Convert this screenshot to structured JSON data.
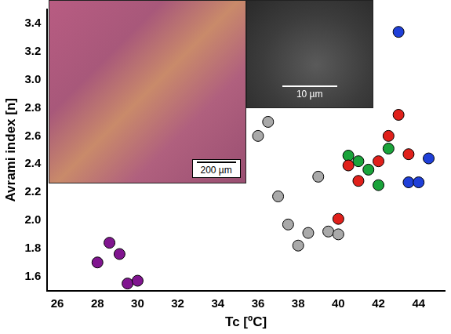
{
  "chart_data": {
    "type": "scatter",
    "x_label": "Tc [ºC]",
    "y_label": "Avrami index [n]",
    "xlim": [
      25.5,
      45.3
    ],
    "xticks": [
      26,
      28,
      30,
      32,
      34,
      36,
      38,
      40,
      42,
      44
    ],
    "ylim": [
      1.5,
      3.5
    ],
    "yticks": [
      1.6,
      1.8,
      {
        "value": 2,
        "label": "2.0"
      },
      2.2,
      2.4,
      2.6,
      2.8,
      {
        "value": 3,
        "label": "3.0"
      },
      3.2,
      3.4
    ],
    "grid": false,
    "marker": "circle",
    "series": [
      {
        "color": "#80158f",
        "x": [
          28.0,
          28.6,
          29.1,
          29.5,
          30.0
        ],
        "values": [
          1.7,
          1.84,
          1.76,
          1.55,
          1.57
        ]
      },
      {
        "color": "#a9a9a9",
        "x": [
          36.0,
          36.5,
          37.0,
          37.5,
          38.0,
          38.5,
          39.0,
          39.5,
          40.0
        ],
        "values": [
          2.6,
          2.7,
          2.17,
          1.97,
          1.82,
          1.91,
          2.31,
          1.92,
          1.9
        ]
      },
      {
        "color": "#e0201b",
        "x": [
          40.0,
          40.5,
          41.0,
          42.0,
          42.5,
          43.0,
          43.5
        ],
        "values": [
          2.01,
          2.39,
          2.28,
          2.42,
          2.6,
          2.75,
          2.47
        ]
      },
      {
        "color": "#1aa33a",
        "x": [
          40.5,
          41.0,
          41.5,
          42.0,
          42.5
        ],
        "values": [
          2.46,
          2.42,
          2.36,
          2.25,
          2.51
        ]
      },
      {
        "color": "#1f3fd8",
        "x": [
          43.0,
          43.5,
          44.0,
          44.5
        ],
        "values": [
          3.34,
          2.27,
          2.27,
          2.44
        ]
      }
    ]
  },
  "insets": [
    {
      "scale_bar": "200 µm"
    },
    {
      "scale_bar": "10 µm"
    }
  ]
}
